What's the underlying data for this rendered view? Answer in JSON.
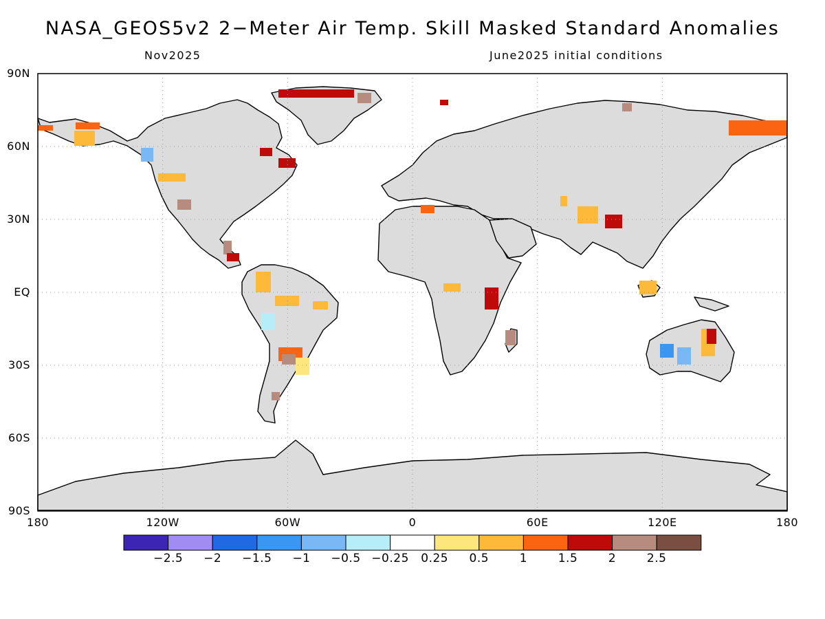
{
  "title": "NASA_GEOS5v2 2−Meter Air Temp. Skill Masked Standard Anomalies",
  "subtitle_left": "Nov2025",
  "subtitle_right": "June2025 initial conditions",
  "lat_labels": [
    "90N",
    "60N",
    "30N",
    "EQ",
    "30S",
    "60S",
    "90S"
  ],
  "lon_labels": [
    "180",
    "120W",
    "60W",
    "0",
    "60E",
    "120E",
    "180"
  ],
  "colorbar": {
    "colors": [
      "#3d25b3",
      "#a18cf2",
      "#2169e3",
      "#3a96f0",
      "#79b8f4",
      "#b5edf9",
      "#ffffff",
      "#fde67e",
      "#fdb93a",
      "#fb6410",
      "#bf0a0a",
      "#b78b7e",
      "#7a4f42"
    ],
    "labels": [
      "−2.5",
      "−2",
      "−1.5",
      "−1",
      "−0.5",
      "−0.25",
      "0.25",
      "0.5",
      "1",
      "1.5",
      "2",
      "2.5"
    ]
  },
  "colors": {
    "land": "#dcdcdc",
    "ocean": "#ffffff",
    "grid": "#9a9a9a"
  }
}
